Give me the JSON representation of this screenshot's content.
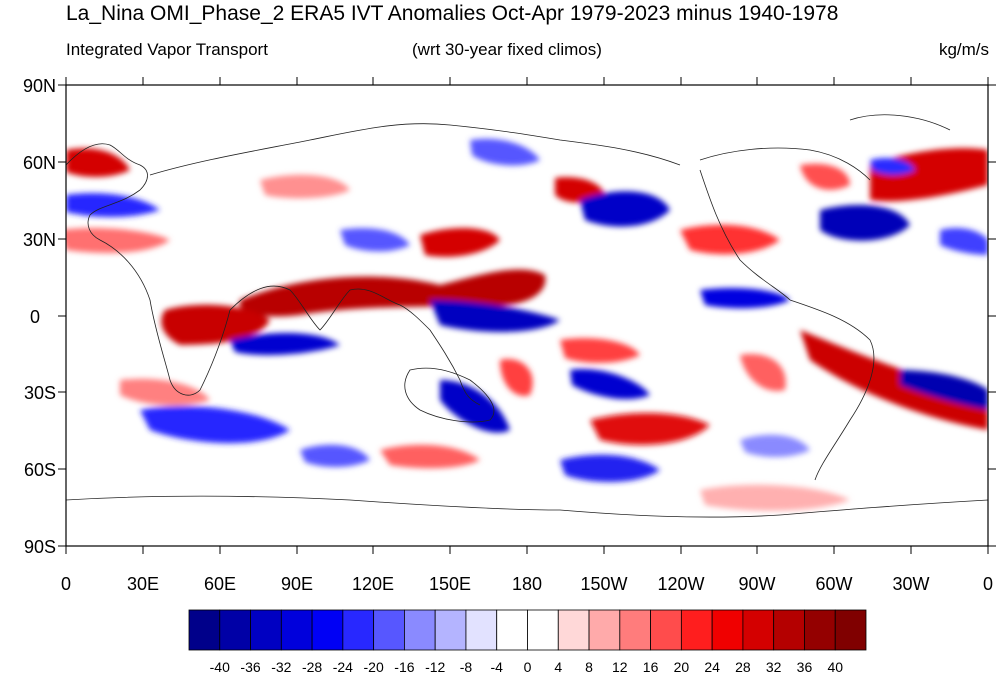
{
  "title": "La_Nina OMI_Phase_2 ERA5 IVT Anomalies Oct-Apr 1979-2023 minus 1940-1978",
  "subtitle_left": "Integrated Vapor Transport",
  "subtitle_center": "(wrt 30-year fixed climos)",
  "subtitle_right": "kg/m/s",
  "lat_labels": [
    "90N",
    "60N",
    "30N",
    "0",
    "30S",
    "60S",
    "90S"
  ],
  "lon_labels": [
    "0",
    "30E",
    "60E",
    "90E",
    "120E",
    "150E",
    "180",
    "150W",
    "120W",
    "90W",
    "60W",
    "30W",
    "0"
  ],
  "colorbar": {
    "labels": [
      "-40",
      "-36",
      "-32",
      "-28",
      "-24",
      "-20",
      "-16",
      "-12",
      "-8",
      "-4",
      "0",
      "4",
      "8",
      "12",
      "16",
      "20",
      "24",
      "28",
      "32",
      "36",
      "40"
    ],
    "colors": [
      "#00008a",
      "#0000a6",
      "#0000c2",
      "#0000dc",
      "#0000f5",
      "#2828ff",
      "#5757ff",
      "#8a8aff",
      "#b4b4ff",
      "#e2e2ff",
      "#ffffff",
      "#ffffff",
      "#ffd8d8",
      "#ffaaaa",
      "#ff7c7c",
      "#ff4c4c",
      "#ff1e1e",
      "#f00000",
      "#d40000",
      "#b40000",
      "#940000",
      "#800000"
    ]
  },
  "map_features": {
    "positive_color": "#c00000",
    "negative_color": "#0000c8"
  }
}
